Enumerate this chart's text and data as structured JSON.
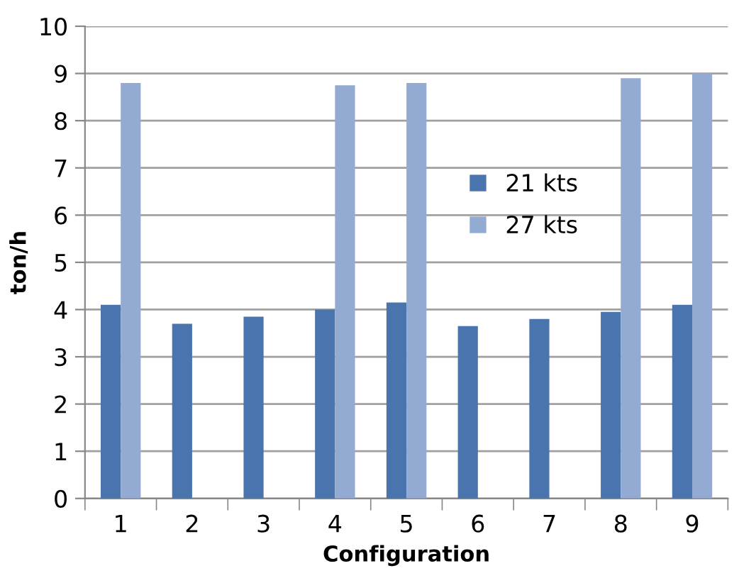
{
  "chart_data": {
    "type": "bar",
    "xlabel": "Configuration",
    "ylabel": "ton/h",
    "categories": [
      "1",
      "2",
      "3",
      "4",
      "5",
      "6",
      "7",
      "8",
      "9"
    ],
    "series": [
      {
        "name": "21 kts",
        "color": "#4a74ad",
        "values": [
          4.1,
          3.7,
          3.85,
          4.0,
          4.15,
          3.65,
          3.8,
          3.95,
          4.1
        ]
      },
      {
        "name": "27 kts",
        "color": "#93aad3",
        "values": [
          8.8,
          null,
          null,
          8.75,
          8.8,
          null,
          null,
          8.9,
          9.0
        ]
      }
    ],
    "ylim": [
      0,
      10
    ],
    "yticks": [
      0,
      1,
      2,
      3,
      4,
      5,
      6,
      7,
      8,
      9,
      10
    ],
    "grid": "y",
    "legend": "right"
  }
}
